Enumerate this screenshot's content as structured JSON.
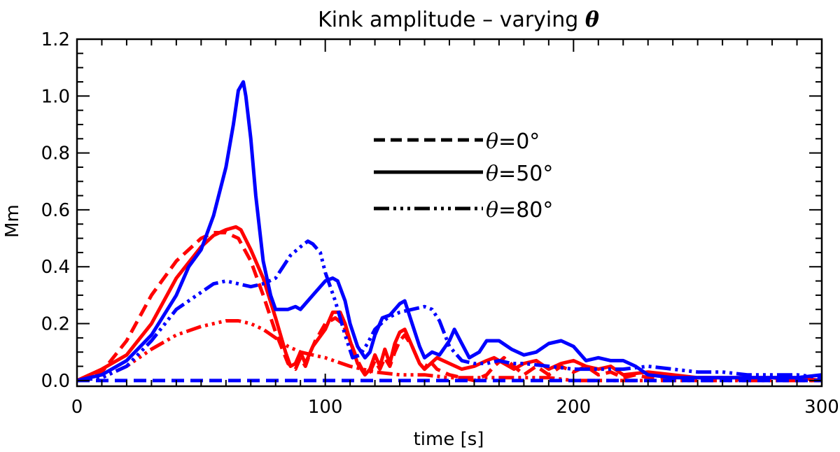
{
  "chart_data": {
    "type": "line",
    "title": "Kink amplitude – varying",
    "title_symbol": "θ",
    "xlabel": "time [s]",
    "ylabel": "Mm",
    "xlim": [
      0,
      300
    ],
    "ylim": [
      -0.02,
      1.2
    ],
    "xticks": [
      0,
      100,
      200,
      300
    ],
    "xtick_labels": [
      "0",
      "100",
      "200",
      "300"
    ],
    "yticks": [
      0.0,
      0.2,
      0.4,
      0.6,
      0.8,
      1.0,
      1.2
    ],
    "ytick_labels": [
      "0.0",
      "0.2",
      "0.4",
      "0.6",
      "0.8",
      "1.0",
      "1.2"
    ],
    "legend": [
      {
        "symbol": "θ",
        "text": "=0°",
        "style": "dashed"
      },
      {
        "symbol": "θ",
        "text": "=50°",
        "style": "solid"
      },
      {
        "symbol": "θ",
        "text": "=80°",
        "style": "dash-dot-dot"
      }
    ],
    "series": [
      {
        "name": "θ=0° red",
        "color": "#ff0000",
        "style": "dashed",
        "x": [
          0,
          10,
          20,
          30,
          40,
          50,
          55,
          60,
          65,
          70,
          75,
          80,
          85,
          88,
          90,
          92,
          94,
          96,
          100,
          104,
          107,
          110,
          113,
          116,
          118,
          120,
          122,
          124,
          126,
          128,
          130,
          132,
          135,
          138,
          140,
          142,
          145,
          150,
          155,
          160,
          165,
          168,
          172,
          176,
          180,
          185,
          190,
          195,
          200,
          205,
          210,
          215,
          220,
          225,
          230,
          240,
          250,
          260,
          270,
          280,
          290,
          300
        ],
        "values": [
          0.0,
          0.03,
          0.14,
          0.3,
          0.42,
          0.5,
          0.52,
          0.52,
          0.5,
          0.42,
          0.3,
          0.17,
          0.06,
          0.04,
          0.08,
          0.05,
          0.1,
          0.14,
          0.2,
          0.22,
          0.2,
          0.14,
          0.07,
          0.02,
          0.03,
          0.07,
          0.04,
          0.08,
          0.05,
          0.1,
          0.14,
          0.16,
          0.12,
          0.06,
          0.04,
          0.07,
          0.04,
          0.02,
          0.01,
          0.0,
          0.02,
          0.05,
          0.08,
          0.05,
          0.02,
          0.05,
          0.02,
          0.05,
          0.03,
          0.05,
          0.02,
          0.03,
          0.01,
          0.02,
          0.01,
          0.01,
          0.01,
          0.01,
          0.0,
          0.01,
          0.0,
          0.0
        ]
      },
      {
        "name": "θ=50° red",
        "color": "#ff0000",
        "style": "solid",
        "x": [
          0,
          10,
          20,
          30,
          40,
          50,
          55,
          60,
          64,
          66,
          70,
          75,
          80,
          84,
          86,
          88,
          90,
          92,
          95,
          100,
          103,
          106,
          108,
          110,
          113,
          116,
          118,
          120,
          122,
          124,
          126,
          128,
          130,
          132,
          134,
          136,
          138,
          140,
          145,
          150,
          155,
          160,
          165,
          168,
          172,
          176,
          180,
          185,
          190,
          195,
          200,
          205,
          210,
          215,
          220,
          230,
          240,
          250,
          260,
          270,
          280,
          290,
          300
        ],
        "values": [
          0.0,
          0.04,
          0.09,
          0.2,
          0.36,
          0.47,
          0.51,
          0.53,
          0.54,
          0.53,
          0.46,
          0.36,
          0.22,
          0.1,
          0.05,
          0.06,
          0.1,
          0.06,
          0.12,
          0.18,
          0.24,
          0.24,
          0.2,
          0.14,
          0.06,
          0.02,
          0.04,
          0.09,
          0.05,
          0.11,
          0.06,
          0.13,
          0.17,
          0.18,
          0.14,
          0.1,
          0.06,
          0.04,
          0.08,
          0.06,
          0.04,
          0.05,
          0.07,
          0.08,
          0.06,
          0.04,
          0.06,
          0.07,
          0.04,
          0.06,
          0.07,
          0.05,
          0.04,
          0.05,
          0.02,
          0.03,
          0.02,
          0.01,
          0.01,
          0.01,
          0.01,
          0.01,
          0.0
        ]
      },
      {
        "name": "θ=80° red",
        "color": "#ff0000",
        "style": "dash-dot-dot",
        "x": [
          0,
          10,
          20,
          30,
          40,
          50,
          60,
          65,
          70,
          75,
          80,
          85,
          90,
          95,
          100,
          110,
          120,
          130,
          140,
          150,
          160,
          170,
          180,
          190,
          200,
          220,
          240,
          260,
          280,
          300
        ],
        "values": [
          0.0,
          0.01,
          0.05,
          0.11,
          0.16,
          0.19,
          0.21,
          0.21,
          0.2,
          0.18,
          0.15,
          0.12,
          0.1,
          0.09,
          0.08,
          0.05,
          0.03,
          0.02,
          0.02,
          0.01,
          0.01,
          0.01,
          0.01,
          0.01,
          0.0,
          0.0,
          0.0,
          0.0,
          0.0,
          0.0
        ]
      },
      {
        "name": "θ=0° blue",
        "color": "#0000ff",
        "style": "dashed",
        "x": [
          0,
          50,
          100,
          150,
          200,
          250,
          300
        ],
        "values": [
          0.0,
          0.0,
          0.0,
          0.0,
          0.0,
          0.0,
          0.0
        ]
      },
      {
        "name": "θ=50° blue",
        "color": "#0000ff",
        "style": "solid",
        "x": [
          0,
          10,
          20,
          30,
          40,
          45,
          50,
          55,
          60,
          63,
          65,
          67,
          68,
          70,
          72,
          75,
          78,
          80,
          82,
          85,
          88,
          90,
          95,
          100,
          103,
          105,
          108,
          110,
          113,
          116,
          118,
          120,
          123,
          126,
          130,
          132,
          135,
          138,
          140,
          143,
          146,
          150,
          152,
          155,
          158,
          162,
          165,
          170,
          175,
          180,
          185,
          190,
          195,
          200,
          205,
          210,
          215,
          220,
          225,
          230,
          240,
          250,
          260,
          270,
          280,
          290,
          300
        ],
        "values": [
          0.0,
          0.02,
          0.07,
          0.16,
          0.3,
          0.4,
          0.46,
          0.58,
          0.75,
          0.9,
          1.02,
          1.05,
          1.0,
          0.85,
          0.65,
          0.42,
          0.3,
          0.25,
          0.25,
          0.25,
          0.26,
          0.25,
          0.3,
          0.35,
          0.36,
          0.35,
          0.28,
          0.2,
          0.12,
          0.08,
          0.1,
          0.16,
          0.22,
          0.23,
          0.27,
          0.28,
          0.2,
          0.12,
          0.08,
          0.1,
          0.09,
          0.14,
          0.18,
          0.13,
          0.08,
          0.1,
          0.14,
          0.14,
          0.11,
          0.09,
          0.1,
          0.13,
          0.14,
          0.12,
          0.07,
          0.08,
          0.07,
          0.07,
          0.05,
          0.02,
          0.01,
          0.01,
          0.01,
          0.01,
          0.01,
          0.01,
          0.02
        ]
      },
      {
        "name": "θ=80° blue",
        "color": "#0000ff",
        "style": "dash-dot-dot",
        "x": [
          0,
          10,
          20,
          30,
          40,
          50,
          55,
          60,
          65,
          70,
          75,
          80,
          83,
          86,
          90,
          93,
          95,
          98,
          100,
          104,
          108,
          111,
          114,
          117,
          120,
          125,
          130,
          135,
          140,
          143,
          146,
          150,
          155,
          160,
          165,
          170,
          175,
          180,
          190,
          200,
          210,
          220,
          230,
          240,
          250,
          260,
          270,
          280,
          290,
          300
        ],
        "values": [
          0.0,
          0.01,
          0.05,
          0.14,
          0.25,
          0.31,
          0.34,
          0.35,
          0.34,
          0.33,
          0.34,
          0.36,
          0.4,
          0.44,
          0.47,
          0.49,
          0.48,
          0.45,
          0.38,
          0.28,
          0.16,
          0.08,
          0.09,
          0.13,
          0.18,
          0.22,
          0.24,
          0.25,
          0.26,
          0.25,
          0.21,
          0.12,
          0.07,
          0.06,
          0.06,
          0.07,
          0.06,
          0.06,
          0.05,
          0.04,
          0.04,
          0.04,
          0.05,
          0.04,
          0.03,
          0.03,
          0.02,
          0.02,
          0.02,
          0.01
        ]
      }
    ]
  }
}
